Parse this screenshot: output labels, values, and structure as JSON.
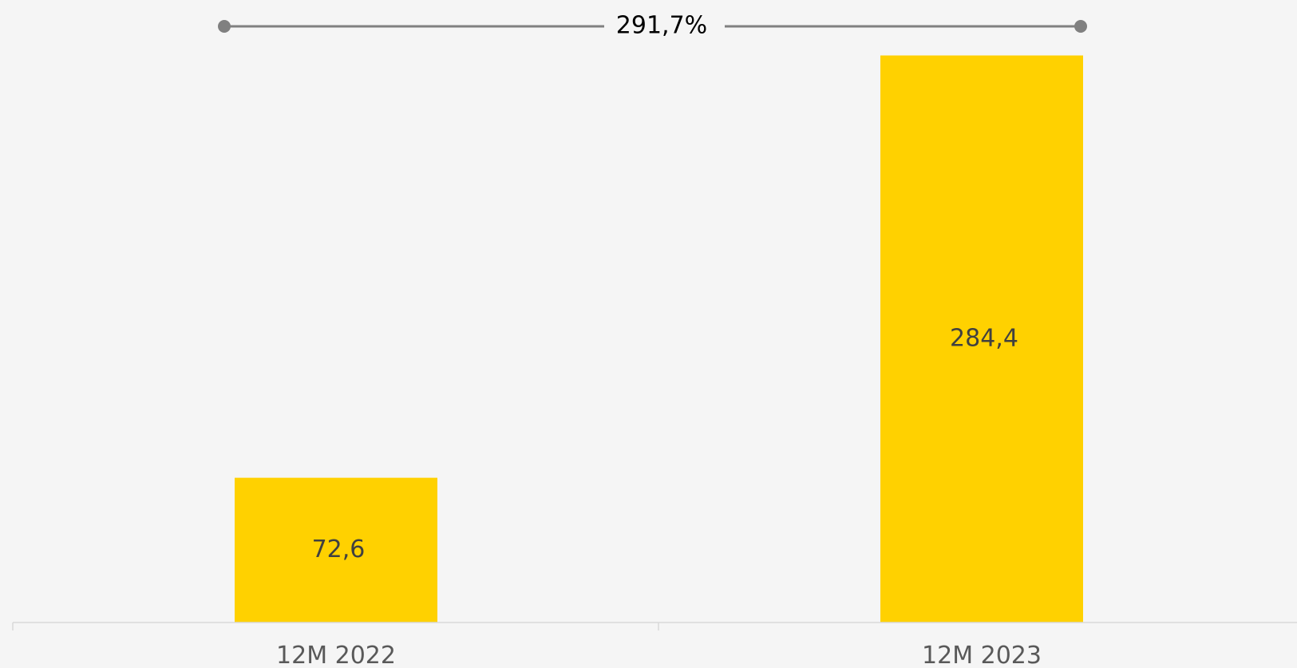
{
  "chart_data": {
    "type": "bar",
    "categories": [
      "12M 2022",
      "12M 2023"
    ],
    "values": [
      72.6,
      284.4
    ],
    "value_labels": [
      "72,6",
      "284,4"
    ],
    "growth_label": "291,7%",
    "ylim": [
      0,
      300
    ],
    "grid": false,
    "legend": "none",
    "colors": {
      "bar": "#ffd100",
      "growth_line": "#808080",
      "axis": "#d9d9d9",
      "background": "#f5f5f5"
    }
  }
}
